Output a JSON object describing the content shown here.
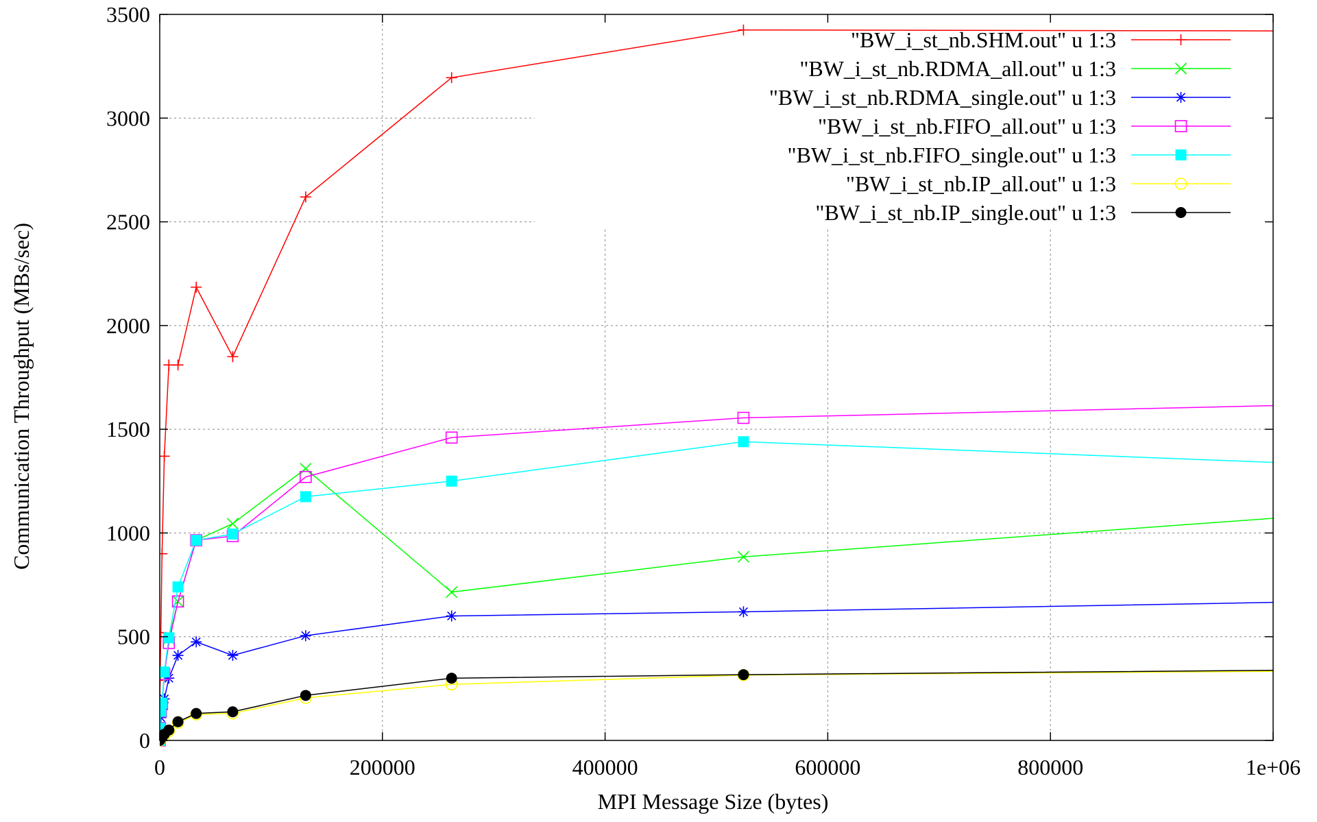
{
  "chart_data": {
    "type": "line",
    "title": "",
    "xlabel": "MPI Message Size (bytes)",
    "ylabel": "Communication Throughput (MBs/sec)",
    "xlim": [
      0,
      1000000
    ],
    "ylim": [
      0,
      3500
    ],
    "x_ticks": [
      0,
      200000,
      400000,
      600000,
      800000,
      1000000
    ],
    "x_tick_labels": [
      "0",
      "200000",
      "400000",
      "600000",
      "800000",
      "1e+06"
    ],
    "y_ticks": [
      0,
      500,
      1000,
      1500,
      2000,
      2500,
      3000,
      3500
    ],
    "y_tick_labels": [
      "0",
      "500",
      "1000",
      "1500",
      "2000",
      "2500",
      "3000",
      "3500"
    ],
    "grid": true,
    "legend_position": "top-right",
    "series": [
      {
        "name": "\"BW_i_st_nb.SHM.out\" u 1:3",
        "color": "#ff0000",
        "marker": "plus",
        "x": [
          1,
          16,
          256,
          1024,
          2048,
          4096,
          8192,
          16384,
          32768,
          65536,
          131072,
          262144,
          524288,
          1048576
        ],
        "y": [
          5,
          70,
          290,
          520,
          900,
          1370,
          1810,
          1810,
          2185,
          1850,
          2620,
          3195,
          3425,
          3420
        ]
      },
      {
        "name": "\"BW_i_st_nb.RDMA_all.out\" u 1:3",
        "color": "#00ff00",
        "marker": "x",
        "x": [
          1,
          16,
          256,
          1024,
          2048,
          4096,
          8192,
          16384,
          32768,
          65536,
          131072,
          262144,
          524288,
          1048576
        ],
        "y": [
          0,
          10,
          60,
          140,
          180,
          320,
          490,
          670,
          965,
          1045,
          1310,
          715,
          885,
          1090
        ]
      },
      {
        "name": "\"BW_i_st_nb.RDMA_single.out\" u 1:3",
        "color": "#0000ff",
        "marker": "star",
        "x": [
          1,
          16,
          256,
          1024,
          2048,
          4096,
          8192,
          16384,
          32768,
          65536,
          131072,
          262144,
          524288,
          1048576
        ],
        "y": [
          0,
          10,
          50,
          110,
          150,
          200,
          300,
          410,
          475,
          410,
          505,
          600,
          620,
          670
        ]
      },
      {
        "name": "\"BW_i_st_nb.FIFO_all.out\" u 1:3",
        "color": "#ff00ff",
        "marker": "open-square",
        "x": [
          1,
          16,
          256,
          1024,
          2048,
          4096,
          8192,
          16384,
          32768,
          65536,
          131072,
          262144,
          524288,
          1048576
        ],
        "y": [
          0,
          10,
          60,
          140,
          175,
          320,
          470,
          670,
          965,
          985,
          1270,
          1460,
          1555,
          1620
        ]
      },
      {
        "name": "\"BW_i_st_nb.FIFO_single.out\" u 1:3",
        "color": "#00ffff",
        "marker": "filled-square",
        "x": [
          1,
          16,
          256,
          1024,
          2048,
          4096,
          8192,
          16384,
          32768,
          65536,
          131072,
          262144,
          524288,
          1048576
        ],
        "y": [
          0,
          10,
          60,
          140,
          180,
          330,
          495,
          740,
          965,
          995,
          1175,
          1250,
          1440,
          1330
        ]
      },
      {
        "name": "\"BW_i_st_nb.IP_all.out\" u 1:3",
        "color": "#ffff00",
        "marker": "open-circle",
        "x": [
          1,
          16,
          256,
          1024,
          2048,
          4096,
          8192,
          16384,
          32768,
          65536,
          131072,
          262144,
          524288,
          1048576
        ],
        "y": [
          0,
          2,
          5,
          10,
          15,
          25,
          45,
          85,
          125,
          130,
          205,
          270,
          315,
          335
        ]
      },
      {
        "name": "\"BW_i_st_nb.IP_single.out\" u 1:3",
        "color": "#000000",
        "marker": "filled-circle",
        "x": [
          1,
          16,
          256,
          1024,
          2048,
          4096,
          8192,
          16384,
          32768,
          65536,
          131072,
          262144,
          524288,
          1048576
        ],
        "y": [
          0,
          2,
          5,
          10,
          15,
          30,
          50,
          90,
          130,
          138,
          217,
          300,
          317,
          340
        ]
      }
    ]
  }
}
